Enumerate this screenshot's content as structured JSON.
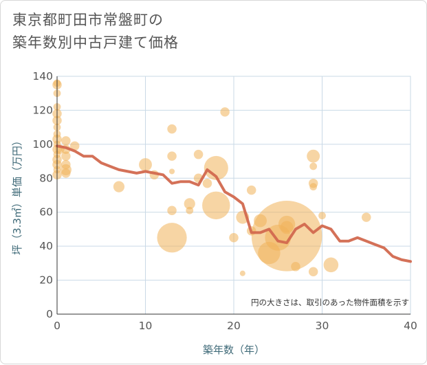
{
  "chart_data": {
    "type": "scatter",
    "title": "東京都町田市常盤町の\n築年数別中古戸建て価格",
    "xlabel": "築年数（年）",
    "ylabel": "坪（3.3㎡）単価（万円）",
    "xlim": [
      0,
      40
    ],
    "ylim": [
      0,
      140
    ],
    "x_ticks": [
      "0",
      "10",
      "20",
      "30",
      "40"
    ],
    "y_ticks": [
      "0",
      "20",
      "40",
      "60",
      "80",
      "100",
      "120",
      "140"
    ],
    "note": "円の大きさは、取引のあった物件面積を示す",
    "colors": {
      "bubble": "#f0b35a",
      "line": "#d2694f",
      "grid": "#c9d9e6",
      "axis": "#333333"
    },
    "scatter": [
      {
        "x": 0,
        "y": 136,
        "size": 4
      },
      {
        "x": 0,
        "y": 135,
        "size": 5
      },
      {
        "x": 0,
        "y": 130,
        "size": 4
      },
      {
        "x": 0,
        "y": 122,
        "size": 4
      },
      {
        "x": 0,
        "y": 118,
        "size": 5
      },
      {
        "x": 0,
        "y": 114,
        "size": 5
      },
      {
        "x": 0,
        "y": 110,
        "size": 4
      },
      {
        "x": 0,
        "y": 106,
        "size": 4
      },
      {
        "x": 0,
        "y": 103,
        "size": 5
      },
      {
        "x": 0,
        "y": 100,
        "size": 4
      },
      {
        "x": 0,
        "y": 97,
        "size": 5
      },
      {
        "x": 0,
        "y": 94,
        "size": 4
      },
      {
        "x": 0,
        "y": 91,
        "size": 5
      },
      {
        "x": 0,
        "y": 88,
        "size": 5
      },
      {
        "x": 0,
        "y": 85,
        "size": 4
      },
      {
        "x": 0,
        "y": 82,
        "size": 5
      },
      {
        "x": 0.3,
        "y": 97,
        "size": 5
      },
      {
        "x": 1,
        "y": 102,
        "size": 5
      },
      {
        "x": 1,
        "y": 97,
        "size": 5
      },
      {
        "x": 1,
        "y": 93,
        "size": 5
      },
      {
        "x": 1,
        "y": 88,
        "size": 5
      },
      {
        "x": 1,
        "y": 85,
        "size": 6
      },
      {
        "x": 1,
        "y": 83,
        "size": 5
      },
      {
        "x": 2,
        "y": 99,
        "size": 5
      },
      {
        "x": 7,
        "y": 75,
        "size": 6
      },
      {
        "x": 10,
        "y": 88,
        "size": 7
      },
      {
        "x": 11,
        "y": 82,
        "size": 5
      },
      {
        "x": 13,
        "y": 109,
        "size": 5
      },
      {
        "x": 13,
        "y": 93,
        "size": 5
      },
      {
        "x": 13,
        "y": 84,
        "size": 3
      },
      {
        "x": 13,
        "y": 61,
        "size": 5
      },
      {
        "x": 13,
        "y": 45,
        "size": 16
      },
      {
        "x": 15,
        "y": 65,
        "size": 6
      },
      {
        "x": 15,
        "y": 61,
        "size": 4
      },
      {
        "x": 16,
        "y": 94,
        "size": 5
      },
      {
        "x": 16,
        "y": 80,
        "size": 5
      },
      {
        "x": 17,
        "y": 77,
        "size": 5
      },
      {
        "x": 18,
        "y": 86,
        "size": 13
      },
      {
        "x": 18,
        "y": 64,
        "size": 15
      },
      {
        "x": 19,
        "y": 119,
        "size": 5
      },
      {
        "x": 20,
        "y": 45,
        "size": 5
      },
      {
        "x": 21,
        "y": 24,
        "size": 3
      },
      {
        "x": 21,
        "y": 57,
        "size": 7
      },
      {
        "x": 22,
        "y": 73,
        "size": 5
      },
      {
        "x": 22,
        "y": 49,
        "size": 5
      },
      {
        "x": 23,
        "y": 55,
        "size": 7
      },
      {
        "x": 24,
        "y": 36,
        "size": 12
      },
      {
        "x": 25,
        "y": 45,
        "size": 14
      },
      {
        "x": 26,
        "y": 46,
        "size": 38
      },
      {
        "x": 26,
        "y": 53,
        "size": 9
      },
      {
        "x": 26,
        "y": 51,
        "size": 7
      },
      {
        "x": 27,
        "y": 28,
        "size": 5
      },
      {
        "x": 29,
        "y": 93,
        "size": 7
      },
      {
        "x": 29,
        "y": 87,
        "size": 4
      },
      {
        "x": 29,
        "y": 77,
        "size": 5
      },
      {
        "x": 29,
        "y": 75,
        "size": 4
      },
      {
        "x": 29,
        "y": 25,
        "size": 5
      },
      {
        "x": 30,
        "y": 58,
        "size": 4
      },
      {
        "x": 31,
        "y": 29,
        "size": 8
      },
      {
        "x": 35,
        "y": 57,
        "size": 5
      }
    ],
    "line": {
      "x": [
        0,
        1,
        2,
        3,
        4,
        5,
        6,
        7,
        8,
        9,
        10,
        11,
        12,
        13,
        14,
        15,
        16,
        17,
        18,
        19,
        20,
        21,
        22,
        23,
        24,
        25,
        26,
        27,
        28,
        29,
        30,
        31,
        32,
        33,
        34,
        35,
        36,
        37,
        38,
        39,
        40
      ],
      "y": [
        99,
        98,
        96,
        93,
        93,
        89,
        87,
        85,
        84,
        83,
        84,
        83,
        82,
        77,
        78,
        78,
        76,
        85,
        81,
        72,
        69,
        65,
        48,
        48,
        50,
        43,
        42,
        50,
        53,
        48,
        52,
        50,
        43,
        43,
        45,
        43,
        41,
        39,
        34,
        32,
        31
      ]
    }
  }
}
